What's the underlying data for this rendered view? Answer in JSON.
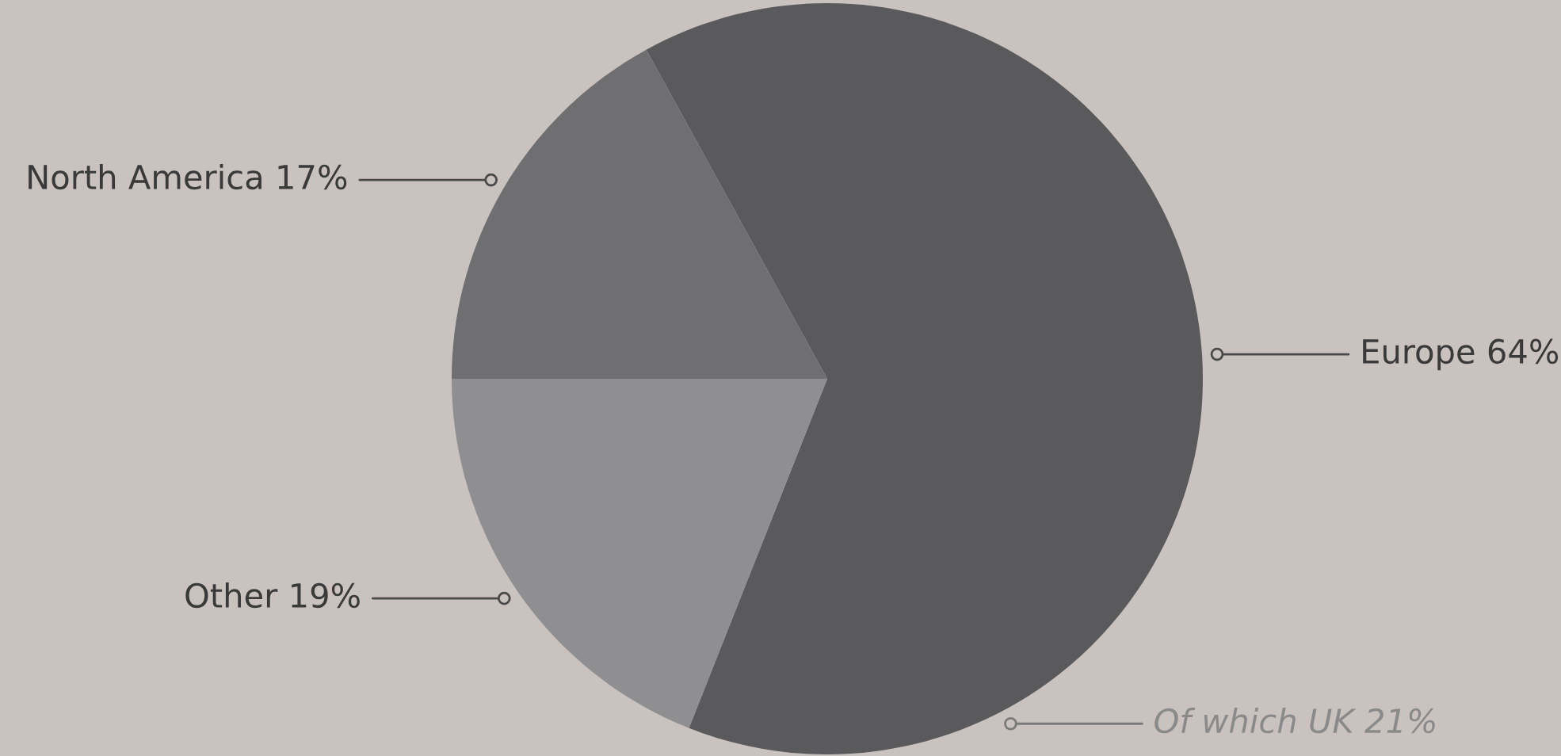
{
  "chart_data": {
    "type": "pie",
    "categories": [
      "Europe",
      "North America",
      "Other"
    ],
    "values": [
      64,
      17,
      19
    ],
    "value_labels": [
      "64%",
      "17%",
      "19%"
    ],
    "colors": [
      "#5a5a5c",
      "#6f6f71",
      "#8f8f91"
    ],
    "annotations": [
      "Of which UK 21%"
    ]
  }
}
